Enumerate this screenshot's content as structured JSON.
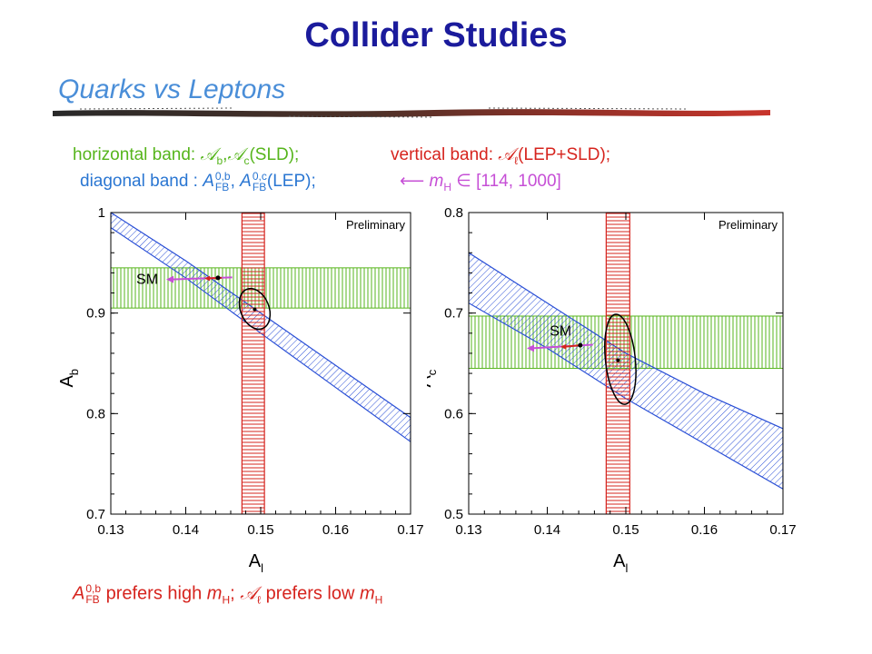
{
  "slide": {
    "title": "Collider Studies",
    "subtitle": "Quarks vs Leptons"
  },
  "legend": {
    "horizontal_prefix": "horizontal band: ",
    "horizontal_sym1": "𝒜",
    "horizontal_sym1_sub": "b",
    "horizontal_sep": ",",
    "horizontal_sym2": "𝒜",
    "horizontal_sym2_sub": "c",
    "horizontal_suffix": "(SLD);",
    "vertical_prefix": "vertical band: ",
    "vertical_sym": "𝒜",
    "vertical_sym_sub": "ℓ",
    "vertical_suffix": "(LEP+SLD);",
    "diagonal_prefix": "diagonal band : ",
    "diagonal_sym1": "A",
    "diagonal_sym1_sup": "0,b",
    "diagonal_sym1_sub": "FB",
    "diagonal_sep": ", ",
    "diagonal_sym2": "A",
    "diagonal_sym2_sup": "0,c",
    "diagonal_sym2_sub": "FB",
    "diagonal_suffix": "(LEP);",
    "mass_arrow": "⟵",
    "mass_sym": "m",
    "mass_sym_sub": "H",
    "mass_range": " ∈ [114, 1000]"
  },
  "note": {
    "sym": "A",
    "sym_sup": "0,b",
    "sym_sub": "FB",
    "part1": " prefers high ",
    "mh": "m",
    "mh_sub": "H",
    "sep": "; ",
    "sym2": "𝒜",
    "sym2_sub": "ℓ",
    "part2": " prefers low ",
    "mh2": "m",
    "mh2_sub": "H"
  },
  "colors": {
    "title": "#1b1b9c",
    "subtitle": "#4a8ed8",
    "horizontal_band": "#56b51c",
    "vertical_band": "#d6241e",
    "diagonal_band": "#2a4fd6",
    "sm_arrow": "#c64fd6",
    "ellipse": "#000000"
  },
  "chart_data": [
    {
      "type": "scatter",
      "label_preliminary": "Preliminary",
      "sm_label": "SM",
      "xlabel": "A",
      "xlabel_sub": "l",
      "ylabel": "A",
      "ylabel_sub": "b",
      "xlim": [
        0.13,
        0.17
      ],
      "ylim": [
        0.7,
        1.0
      ],
      "x_ticks": [
        0.13,
        0.14,
        0.15,
        0.16,
        0.17
      ],
      "x_tick_labels": [
        "0.13",
        "0.14",
        "0.15",
        "0.16",
        "0.17"
      ],
      "y_ticks": [
        0.7,
        0.8,
        0.9,
        1.0
      ],
      "y_tick_labels": [
        "0.7",
        "0.8",
        "0.9",
        "1"
      ],
      "horizontal_band": [
        0.905,
        0.945
      ],
      "vertical_band": [
        0.1475,
        0.1505
      ],
      "diagonal_band_upper": [
        [
          0.13,
          1.0
        ],
        [
          0.14,
          0.952
        ],
        [
          0.15,
          0.9
        ],
        [
          0.16,
          0.848
        ],
        [
          0.17,
          0.796
        ]
      ],
      "diagonal_band_lower": [
        [
          0.13,
          0.985
        ],
        [
          0.14,
          0.935
        ],
        [
          0.15,
          0.88
        ],
        [
          0.16,
          0.826
        ],
        [
          0.17,
          0.772
        ]
      ],
      "ellipse": {
        "cx": 0.1492,
        "cy": 0.9042,
        "rx": 0.0019,
        "ry": 0.021,
        "tilt": -22
      },
      "fit_point": [
        0.1492,
        0.9038
      ],
      "sm_arrow_head": [
        0.1374,
        0.9335
      ],
      "sm_arrow_tail": [
        0.1462,
        0.9355
      ],
      "sm_red_head": [
        0.1425,
        0.9345
      ],
      "sm_red_tail": [
        0.1448,
        0.935
      ],
      "sm_point": [
        0.1443,
        0.935
      ],
      "sm_label_pos": [
        0.1334,
        0.9335
      ]
    },
    {
      "type": "scatter",
      "label_preliminary": "Preliminary",
      "sm_label": "SM",
      "xlabel": "A",
      "xlabel_sub": "l",
      "ylabel": "A",
      "ylabel_sub": "c",
      "xlim": [
        0.13,
        0.17
      ],
      "ylim": [
        0.5,
        0.8
      ],
      "x_ticks": [
        0.13,
        0.14,
        0.15,
        0.16,
        0.17
      ],
      "x_tick_labels": [
        "0.13",
        "0.14",
        "0.15",
        "0.16",
        "0.17"
      ],
      "y_ticks": [
        0.5,
        0.6,
        0.7,
        0.8
      ],
      "y_tick_labels": [
        "0.5",
        "0.6",
        "0.7",
        "0.8"
      ],
      "horizontal_band": [
        0.645,
        0.697
      ],
      "vertical_band": [
        0.1475,
        0.1505
      ],
      "diagonal_band_upper": [
        [
          0.13,
          0.76
        ],
        [
          0.14,
          0.71
        ],
        [
          0.15,
          0.66
        ],
        [
          0.16,
          0.62
        ],
        [
          0.17,
          0.585
        ]
      ],
      "diagonal_band_lower": [
        [
          0.13,
          0.71
        ],
        [
          0.14,
          0.665
        ],
        [
          0.15,
          0.615
        ],
        [
          0.16,
          0.57
        ],
        [
          0.17,
          0.525
        ]
      ],
      "ellipse": {
        "cx": 0.1493,
        "cy": 0.654,
        "rx": 0.0019,
        "ry": 0.045,
        "tilt": -6
      },
      "fit_point": [
        0.149,
        0.653
      ],
      "sm_arrow_head": [
        0.1374,
        0.665
      ],
      "sm_arrow_tail": [
        0.1458,
        0.6685
      ],
      "sm_red_head": [
        0.1417,
        0.6665
      ],
      "sm_red_tail": [
        0.1443,
        0.668
      ],
      "sm_point": [
        0.1442,
        0.668
      ],
      "sm_label_pos": [
        0.1403,
        0.682
      ]
    }
  ]
}
